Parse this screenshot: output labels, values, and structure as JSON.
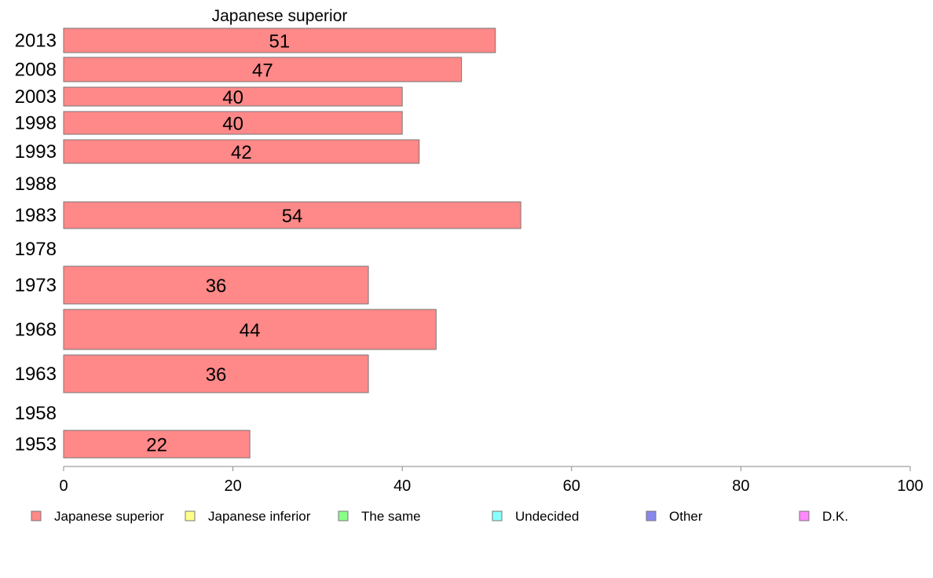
{
  "chart_data": {
    "type": "bar",
    "orientation": "horizontal",
    "title": "Japanese superior",
    "xlim": [
      0,
      100
    ],
    "x_ticks": [
      0,
      20,
      40,
      60,
      80,
      100
    ],
    "grid": false,
    "legend_position": "bottom",
    "categories": [
      "2013",
      "2008",
      "2003",
      "1998",
      "1993",
      "1988",
      "1983",
      "1978",
      "1973",
      "1968",
      "1963",
      "1958",
      "1953"
    ],
    "series": [
      {
        "name": "Japanese superior",
        "color": "#ff8888",
        "values": [
          51,
          47,
          40,
          40,
          42,
          null,
          54,
          null,
          36,
          44,
          36,
          null,
          22
        ],
        "labels": [
          "51",
          "47",
          "40",
          "40",
          "42",
          "",
          "54",
          "",
          "36",
          "44",
          "36",
          "",
          "22"
        ]
      }
    ],
    "legend": [
      {
        "label": "Japanese superior",
        "color": "#ff8888"
      },
      {
        "label": "Japanese inferior",
        "color": "#ffff88"
      },
      {
        "label": "The same",
        "color": "#88ff88"
      },
      {
        "label": "Undecided",
        "color": "#88ffff"
      },
      {
        "label": "Other",
        "color": "#8888ee"
      },
      {
        "label": "D.K.",
        "color": "#ff88ff"
      }
    ]
  }
}
